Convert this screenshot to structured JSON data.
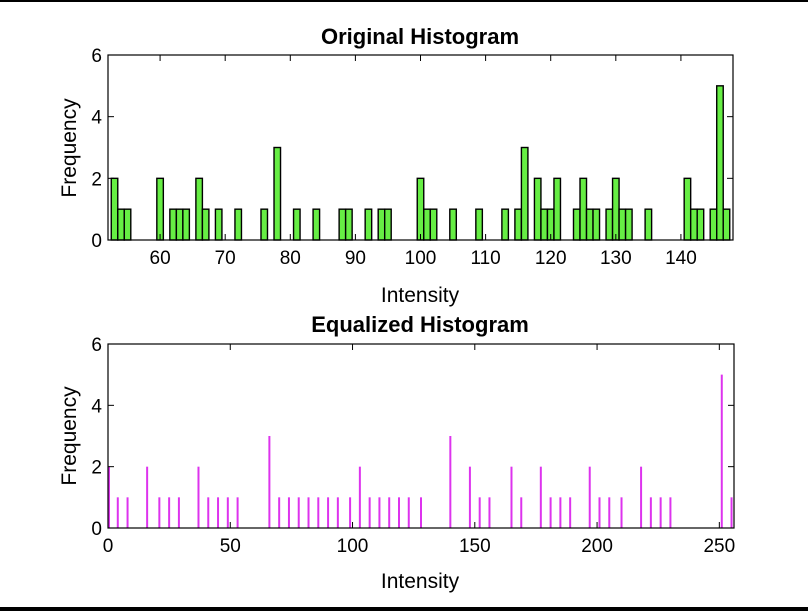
{
  "chart_data": [
    {
      "type": "bar",
      "title": "Original Histogram",
      "xlabel": "Intensity",
      "ylabel": "Frequency",
      "xlim": [
        52,
        148
      ],
      "ylim": [
        0,
        6
      ],
      "xticks": [
        60,
        70,
        80,
        90,
        100,
        110,
        120,
        130,
        140
      ],
      "yticks": [
        0,
        2,
        4,
        6
      ],
      "color": "#66ee44",
      "edgecolor": "#000000",
      "bar_width": 1,
      "x": [
        53,
        54,
        55,
        60,
        62,
        63,
        64,
        66,
        67,
        69,
        72,
        76,
        78,
        81,
        84,
        88,
        89,
        92,
        94,
        95,
        100,
        101,
        102,
        105,
        109,
        113,
        115,
        116,
        118,
        119,
        120,
        121,
        124,
        125,
        126,
        127,
        129,
        130,
        131,
        132,
        135,
        141,
        142,
        143,
        145,
        146,
        147
      ],
      "values": [
        2,
        1,
        1,
        2,
        1,
        1,
        1,
        2,
        1,
        1,
        1,
        1,
        3,
        1,
        1,
        1,
        1,
        1,
        1,
        1,
        2,
        1,
        1,
        1,
        1,
        1,
        1,
        3,
        2,
        1,
        1,
        2,
        1,
        2,
        1,
        1,
        1,
        2,
        1,
        1,
        1,
        2,
        1,
        1,
        1,
        5,
        1
      ]
    },
    {
      "type": "bar",
      "title": "Equalized Histogram",
      "xlabel": "Intensity",
      "ylabel": "Frequency",
      "xlim": [
        0,
        256
      ],
      "ylim": [
        0,
        6
      ],
      "xticks": [
        0,
        50,
        100,
        150,
        200,
        250
      ],
      "yticks": [
        0,
        2,
        4,
        6
      ],
      "color": "#dd33ee",
      "x": [
        0,
        4,
        8,
        16,
        21,
        25,
        29,
        37,
        41,
        45,
        49,
        53,
        66,
        70,
        74,
        78,
        82,
        86,
        90,
        94,
        99,
        103,
        107,
        111,
        115,
        119,
        123,
        128,
        140,
        148,
        152,
        156,
        165,
        169,
        177,
        181,
        185,
        189,
        197,
        201,
        205,
        210,
        218,
        222,
        226,
        230,
        251,
        255
      ],
      "values": [
        2,
        1,
        1,
        2,
        1,
        1,
        1,
        2,
        1,
        1,
        1,
        1,
        3,
        1,
        1,
        1,
        1,
        1,
        1,
        1,
        1,
        2,
        1,
        1,
        1,
        1,
        1,
        1,
        3,
        2,
        1,
        1,
        2,
        1,
        2,
        1,
        1,
        1,
        2,
        1,
        1,
        1,
        2,
        1,
        1,
        1,
        5,
        1
      ]
    }
  ]
}
